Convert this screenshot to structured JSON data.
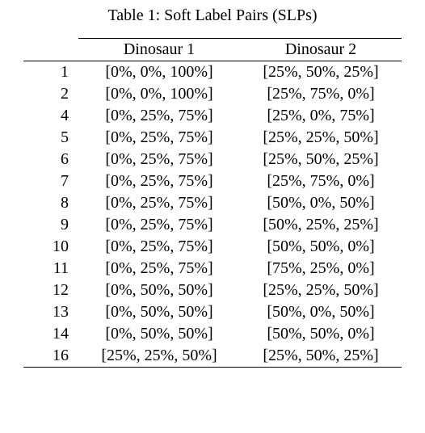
{
  "caption_prefix": "Table 1: Soft Label Pairs (SLPs)",
  "columns": {
    "idx": "",
    "d1": "Dinosaur 1",
    "d2": "Dinosaur 2"
  },
  "rows": [
    {
      "idx": "1",
      "d1": "[0%, 0%, 100%]",
      "d2": "[25%, 50%, 25%]"
    },
    {
      "idx": "2",
      "d1": "[0%, 0%, 100%]",
      "d2": "[25%, 75%, 0%]"
    },
    {
      "idx": "4",
      "d1": "[0%, 25%, 75%]",
      "d2": "[25%, 0%, 75%]"
    },
    {
      "idx": "5",
      "d1": "[0%, 25%, 75%]",
      "d2": "[25%, 25%, 50%]"
    },
    {
      "idx": "6",
      "d1": "[0%, 25%, 75%]",
      "d2": "[25%, 50%, 25%]"
    },
    {
      "idx": "7",
      "d1": "[0%, 25%, 75%]",
      "d2": "[25%, 75%, 0%]"
    },
    {
      "idx": "8",
      "d1": "[0%, 25%, 75%]",
      "d2": "[50%, 0%, 50%]"
    },
    {
      "idx": "9",
      "d1": "[0%, 25%, 75%]",
      "d2": "[50%, 25%, 25%]"
    },
    {
      "idx": "10",
      "d1": "[0%, 25%, 75%]",
      "d2": "[50%, 50%, 0%]"
    },
    {
      "idx": "11",
      "d1": "[0%, 25%, 75%]",
      "d2": "[75%, 25%, 0%]"
    },
    {
      "idx": "12",
      "d1": "[0%, 50%, 50%]",
      "d2": "[25%, 25%, 50%]"
    },
    {
      "idx": "13",
      "d1": "[0%, 50%, 50%]",
      "d2": "[50%, 0%, 50%]"
    },
    {
      "idx": "14",
      "d1": "[0%, 50%, 50%]",
      "d2": "[50%, 50%, 0%]"
    },
    {
      "idx": "16",
      "d1": "[25%, 25%, 50%]",
      "d2": "[25%, 50%, 25%]"
    }
  ],
  "style": {
    "background_color": "#ffffff",
    "text_color": "#000000",
    "border_color": "#000000",
    "font_family": "Times New Roman",
    "caption_fontsize": 20,
    "cell_fontsize": 20
  }
}
